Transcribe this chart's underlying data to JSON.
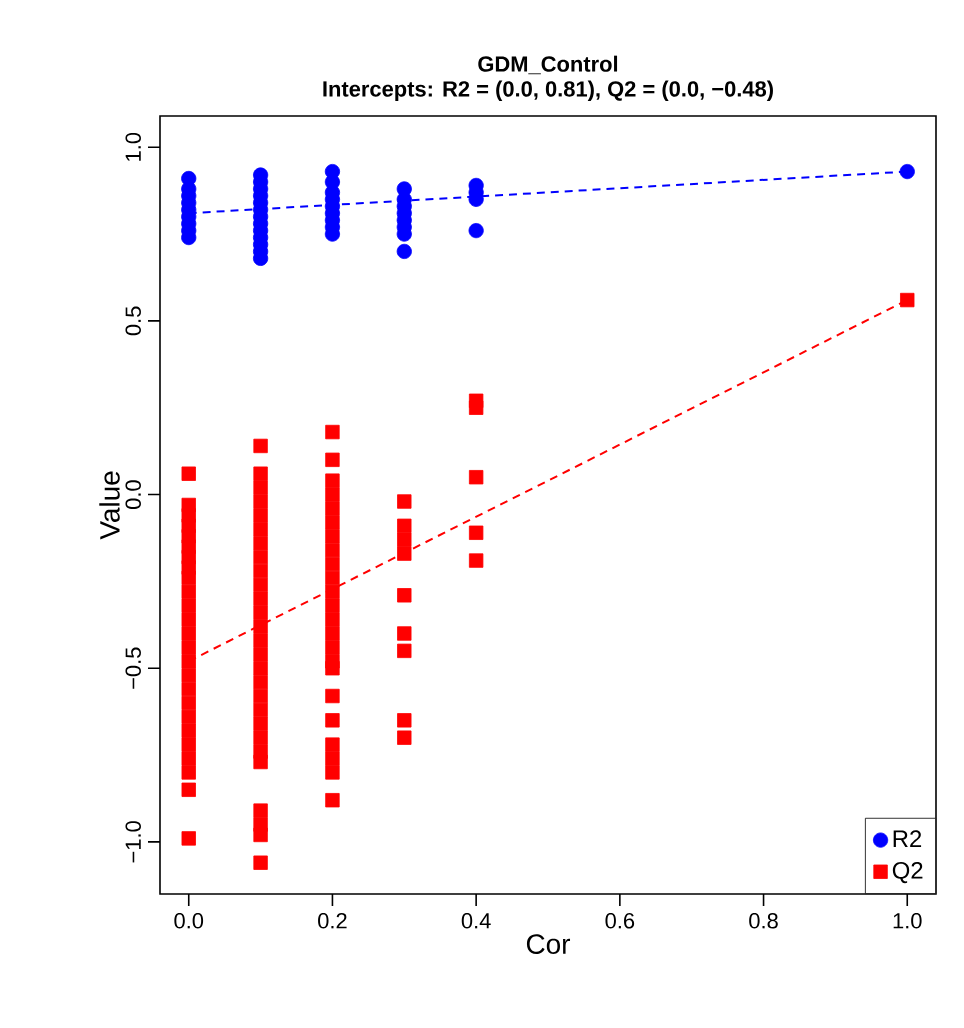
{
  "chart_data": {
    "type": "scatter",
    "title": "GDM_Control",
    "subtitle": "Intercepts: R2 = (0.0, 0.81), Q2 = (0.0, −0.48)",
    "xlabel": "Cor",
    "ylabel": "Value",
    "xlim": [
      -0.04,
      1.04
    ],
    "ylim": [
      -1.15,
      1.09
    ],
    "xticks": [
      {
        "value": 0,
        "label": "0.0"
      },
      0.2,
      0.4,
      0.6,
      0.8,
      {
        "value": 1,
        "label": "1.0"
      }
    ],
    "yticks": [
      {
        "value": -1,
        "label": "−1.0"
      },
      {
        "value": -0.5,
        "label": "−0.5"
      },
      {
        "value": 0,
        "label": "0.0"
      },
      0.5,
      {
        "value": 1,
        "label": "1.0"
      }
    ],
    "grid": false,
    "legend": "bottom right",
    "series": [
      {
        "name": "R2",
        "marker": "circle",
        "color": "#0000ff",
        "x": [
          0,
          0,
          0,
          0,
          0,
          0,
          0,
          0,
          0,
          0.1,
          0.1,
          0.1,
          0.1,
          0.1,
          0.1,
          0.1,
          0.1,
          0.1,
          0.1,
          0.1,
          0.1,
          0.1,
          0.2,
          0.2,
          0.2,
          0.2,
          0.2,
          0.2,
          0.2,
          0.2,
          0.2,
          0.3,
          0.3,
          0.3,
          0.3,
          0.3,
          0.3,
          0.3,
          0.3,
          0.4,
          0.4,
          0.4,
          0.4,
          1
        ],
        "values": [
          0.74,
          0.76,
          0.78,
          0.8,
          0.82,
          0.84,
          0.86,
          0.88,
          0.91,
          0.68,
          0.7,
          0.72,
          0.74,
          0.76,
          0.78,
          0.8,
          0.82,
          0.84,
          0.86,
          0.88,
          0.9,
          0.92,
          0.75,
          0.77,
          0.79,
          0.81,
          0.83,
          0.85,
          0.87,
          0.9,
          0.93,
          0.7,
          0.75,
          0.77,
          0.79,
          0.81,
          0.83,
          0.85,
          0.88,
          0.76,
          0.85,
          0.87,
          0.89,
          0.93
        ]
      },
      {
        "name": "Q2",
        "marker": "square",
        "color": "#ff0000",
        "x": [
          0,
          0,
          0,
          0,
          0,
          0,
          0,
          0,
          0,
          0,
          0,
          0,
          0,
          0,
          0,
          0,
          0,
          0,
          0,
          0,
          0,
          0,
          0,
          0,
          0,
          0.1,
          0.1,
          0.1,
          0.1,
          0.1,
          0.1,
          0.1,
          0.1,
          0.1,
          0.1,
          0.1,
          0.1,
          0.1,
          0.1,
          0.1,
          0.1,
          0.1,
          0.1,
          0.1,
          0.1,
          0.1,
          0.1,
          0.1,
          0.1,
          0.1,
          0.1,
          0.1,
          0.2,
          0.2,
          0.2,
          0.2,
          0.2,
          0.2,
          0.2,
          0.2,
          0.2,
          0.2,
          0.2,
          0.2,
          0.2,
          0.2,
          0.2,
          0.2,
          0.2,
          0.2,
          0.2,
          0.2,
          0.2,
          0.2,
          0.2,
          0.3,
          0.3,
          0.3,
          0.3,
          0.3,
          0.3,
          0.3,
          0.3,
          0.3,
          0.4,
          0.4,
          0.4,
          0.4,
          0.4,
          1
        ],
        "values": [
          0.06,
          -0.03,
          -0.06,
          -0.09,
          -0.12,
          -0.15,
          -0.18,
          -0.21,
          -0.24,
          -0.28,
          -0.32,
          -0.36,
          -0.4,
          -0.44,
          -0.48,
          -0.52,
          -0.56,
          -0.6,
          -0.64,
          -0.68,
          -0.72,
          -0.76,
          -0.8,
          -0.85,
          -0.99,
          0.14,
          0.06,
          0.02,
          -0.02,
          -0.06,
          -0.1,
          -0.14,
          -0.18,
          -0.22,
          -0.26,
          -0.3,
          -0.34,
          -0.38,
          -0.42,
          -0.46,
          -0.5,
          -0.54,
          -0.58,
          -0.62,
          -0.66,
          -0.7,
          -0.74,
          -0.77,
          -0.91,
          -0.95,
          -0.98,
          -1.06,
          0.18,
          0.1,
          0.04,
          0.0,
          -0.04,
          -0.08,
          -0.12,
          -0.16,
          -0.2,
          -0.24,
          -0.28,
          -0.32,
          -0.36,
          -0.4,
          -0.44,
          -0.48,
          -0.5,
          -0.58,
          -0.65,
          -0.72,
          -0.76,
          -0.8,
          -0.88,
          -0.02,
          -0.09,
          -0.13,
          -0.17,
          -0.29,
          -0.4,
          -0.45,
          -0.65,
          -0.7,
          0.27,
          0.25,
          0.05,
          -0.11,
          -0.19,
          0.56
        ]
      },
      {
        "type": "line",
        "line_style": "dashed",
        "marker": "none",
        "color": "#0000ff",
        "x": [
          0,
          1
        ],
        "values": [
          0.81,
          0.93
        ]
      },
      {
        "type": "line",
        "line_style": "dashed",
        "marker": "none",
        "color": "#ff0000",
        "x": [
          0,
          1
        ],
        "values": [
          -0.48,
          0.56
        ]
      }
    ]
  }
}
